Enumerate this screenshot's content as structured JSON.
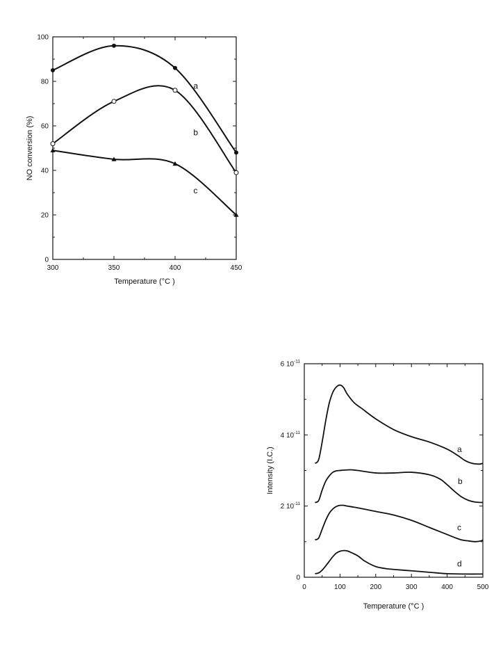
{
  "chart_data": [
    {
      "type": "line",
      "xlabel": "Temperature (°C )",
      "ylabel": "NO conversion (%)",
      "xlim": [
        300,
        450
      ],
      "ylim": [
        0,
        100
      ],
      "xticks": [
        300,
        350,
        400,
        450
      ],
      "yticks": [
        0,
        20,
        40,
        60,
        80,
        100
      ],
      "xtick_labels": [
        "300",
        "350",
        "400",
        "450"
      ],
      "ytick_labels": [
        "0",
        "20",
        "40",
        "60",
        "80",
        "100"
      ],
      "grid": false,
      "series": [
        {
          "name": "a",
          "marker": "filled-circle",
          "color": "#111111",
          "x": [
            300,
            350,
            400,
            450
          ],
          "y": [
            85,
            96,
            86,
            48
          ]
        },
        {
          "name": "b",
          "marker": "open-circle",
          "color": "#111111",
          "x": [
            300,
            350,
            400,
            450
          ],
          "y": [
            52,
            71,
            76,
            39
          ]
        },
        {
          "name": "c",
          "marker": "filled-triangle",
          "color": "#111111",
          "x": [
            300,
            350,
            400,
            450
          ],
          "y": [
            49,
            45,
            43,
            20
          ]
        }
      ]
    },
    {
      "type": "line",
      "xlabel": "Temperature (°C )",
      "ylabel": "Intensity (I.C.)",
      "xlim": [
        0,
        500
      ],
      "ylim": [
        0,
        6e-11
      ],
      "xticks": [
        0,
        100,
        200,
        300,
        400,
        500
      ],
      "yticks": [
        0,
        2e-11,
        4e-11,
        6e-11
      ],
      "xtick_labels": [
        "0",
        "100",
        "200",
        "300",
        "400",
        "500"
      ],
      "ytick_labels": [
        {
          "base": "0",
          "exp": ""
        },
        {
          "base": "2 10",
          "exp": "-11"
        },
        {
          "base": "4 10",
          "exp": "-11"
        },
        {
          "base": "6 10",
          "exp": "-11"
        }
      ],
      "grid": false,
      "series": [
        {
          "name": "a",
          "color": "#111111",
          "x": [
            30,
            40,
            50,
            60,
            70,
            80,
            90,
            100,
            110,
            120,
            140,
            160,
            200,
            250,
            300,
            350,
            400,
            430,
            450,
            470,
            490,
            500
          ],
          "y": [
            3.2e-11,
            3.3e-11,
            3.8e-11,
            4.4e-11,
            4.9e-11,
            5.2e-11,
            5.35e-11,
            5.4e-11,
            5.33e-11,
            5.15e-11,
            4.9e-11,
            4.75e-11,
            4.45e-11,
            4.15e-11,
            3.95e-11,
            3.8e-11,
            3.6e-11,
            3.42e-11,
            3.28e-11,
            3.2e-11,
            3.18e-11,
            3.2e-11
          ]
        },
        {
          "name": "b",
          "color": "#111111",
          "x": [
            30,
            40,
            50,
            60,
            70,
            80,
            90,
            100,
            110,
            130,
            150,
            200,
            250,
            300,
            350,
            380,
            400,
            420,
            440,
            460,
            480,
            500
          ],
          "y": [
            2.1e-11,
            2.15e-11,
            2.45e-11,
            2.7e-11,
            2.85e-11,
            2.95e-11,
            2.99e-11,
            3e-11,
            3.01e-11,
            3.02e-11,
            3e-11,
            2.93e-11,
            2.93e-11,
            2.95e-11,
            2.88e-11,
            2.76e-11,
            2.6e-11,
            2.42e-11,
            2.26e-11,
            2.16e-11,
            2.11e-11,
            2.1e-11
          ]
        },
        {
          "name": "c",
          "color": "#111111",
          "x": [
            30,
            40,
            50,
            60,
            70,
            80,
            90,
            100,
            110,
            120,
            150,
            200,
            250,
            300,
            350,
            400,
            420,
            440,
            460,
            480,
            495,
            500
          ],
          "y": [
            1.05e-11,
            1.1e-11,
            1.35e-11,
            1.6e-11,
            1.8e-11,
            1.92e-11,
            1.99e-11,
            2.02e-11,
            2.02e-11,
            2e-11,
            1.95e-11,
            1.85e-11,
            1.75e-11,
            1.6e-11,
            1.4e-11,
            1.2e-11,
            1.12e-11,
            1.05e-11,
            1.02e-11,
            1e-11,
            1.02e-11,
            1.05e-11
          ]
        },
        {
          "name": "d",
          "color": "#111111",
          "x": [
            30,
            40,
            50,
            60,
            70,
            80,
            90,
            100,
            110,
            120,
            130,
            150,
            170,
            200,
            230,
            250,
            300,
            350,
            400,
            450,
            500
          ],
          "y": [
            1e-12,
            1.2e-12,
            2e-12,
            3.2e-12,
            4.5e-12,
            5.8e-12,
            6.8e-12,
            7.3e-12,
            7.5e-12,
            7.4e-12,
            7e-12,
            6e-12,
            4.5e-12,
            3e-12,
            2.4e-12,
            2.2e-12,
            1.8e-12,
            1.4e-12,
            1e-12,
            9e-13,
            9e-13
          ]
        }
      ]
    }
  ]
}
